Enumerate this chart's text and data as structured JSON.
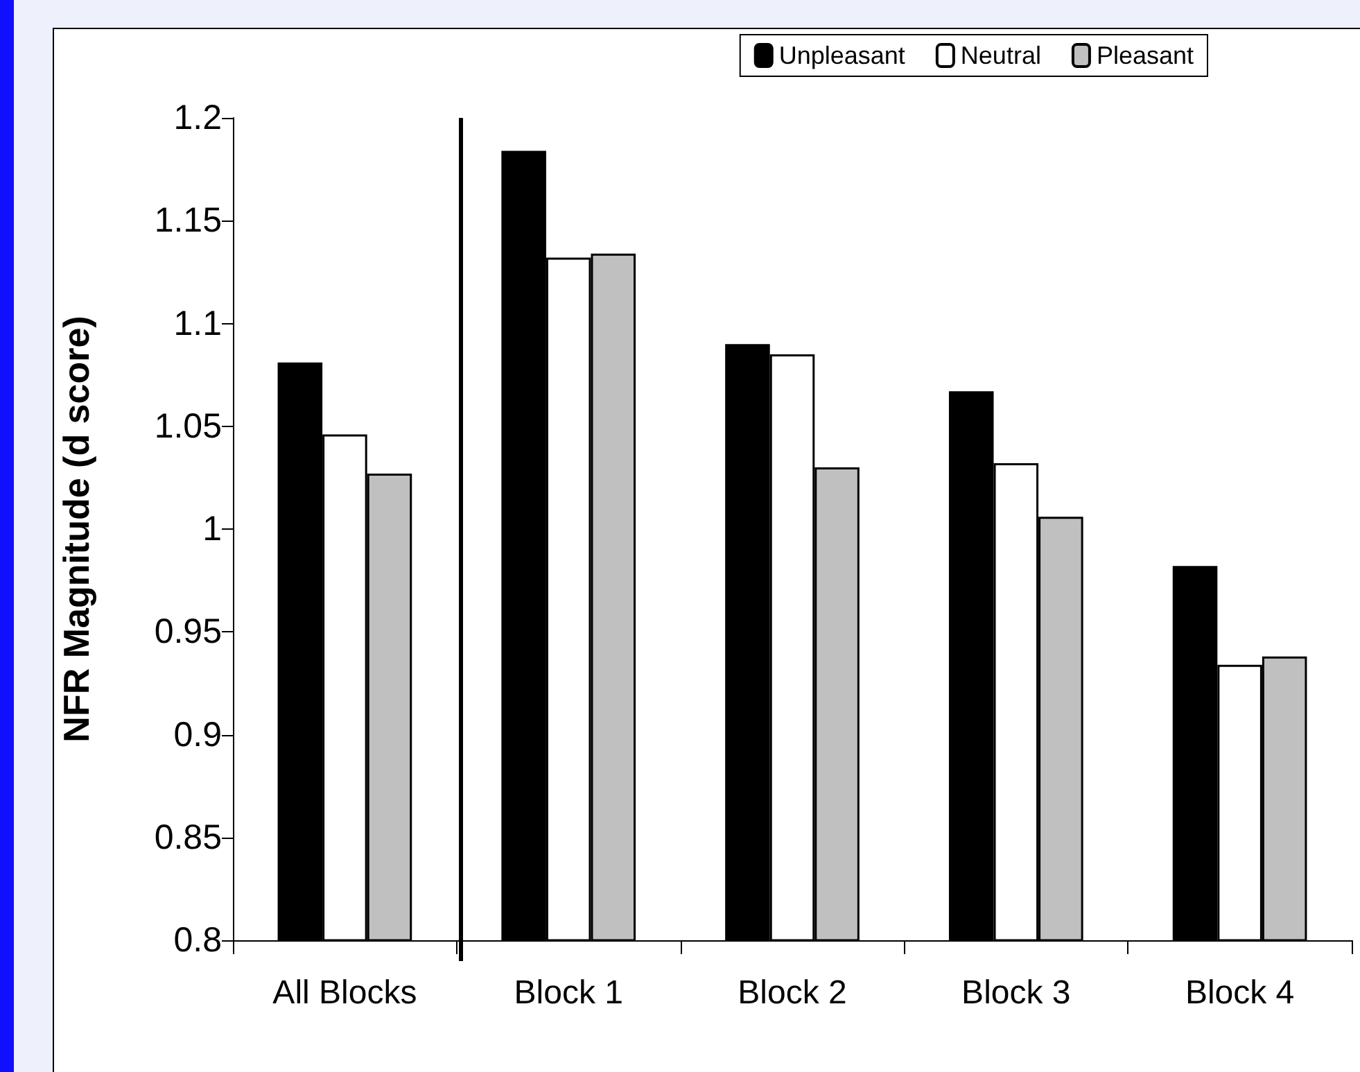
{
  "chart_data": {
    "type": "bar",
    "ylabel": "NFR Magnitude (d score)",
    "categories": [
      "All Blocks",
      "Block 1",
      "Block 2",
      "Block 3",
      "Block 4"
    ],
    "series": [
      {
        "name": "Unpleasant",
        "color": "#000000",
        "values": [
          1.081,
          1.184,
          1.09,
          1.067,
          0.982
        ]
      },
      {
        "name": "Neutral",
        "color": "#ffffff",
        "values": [
          1.046,
          1.132,
          1.085,
          1.032,
          0.934
        ]
      },
      {
        "name": "Pleasant",
        "color": "#c0c0c0",
        "values": [
          1.027,
          1.134,
          1.03,
          1.006,
          0.938
        ]
      }
    ],
    "ylim": [
      0.8,
      1.2
    ],
    "yticks": [
      0.8,
      0.85,
      0.9,
      0.95,
      1,
      1.05,
      1.1,
      1.15,
      1.2
    ],
    "grid": false,
    "legend": "top right"
  }
}
